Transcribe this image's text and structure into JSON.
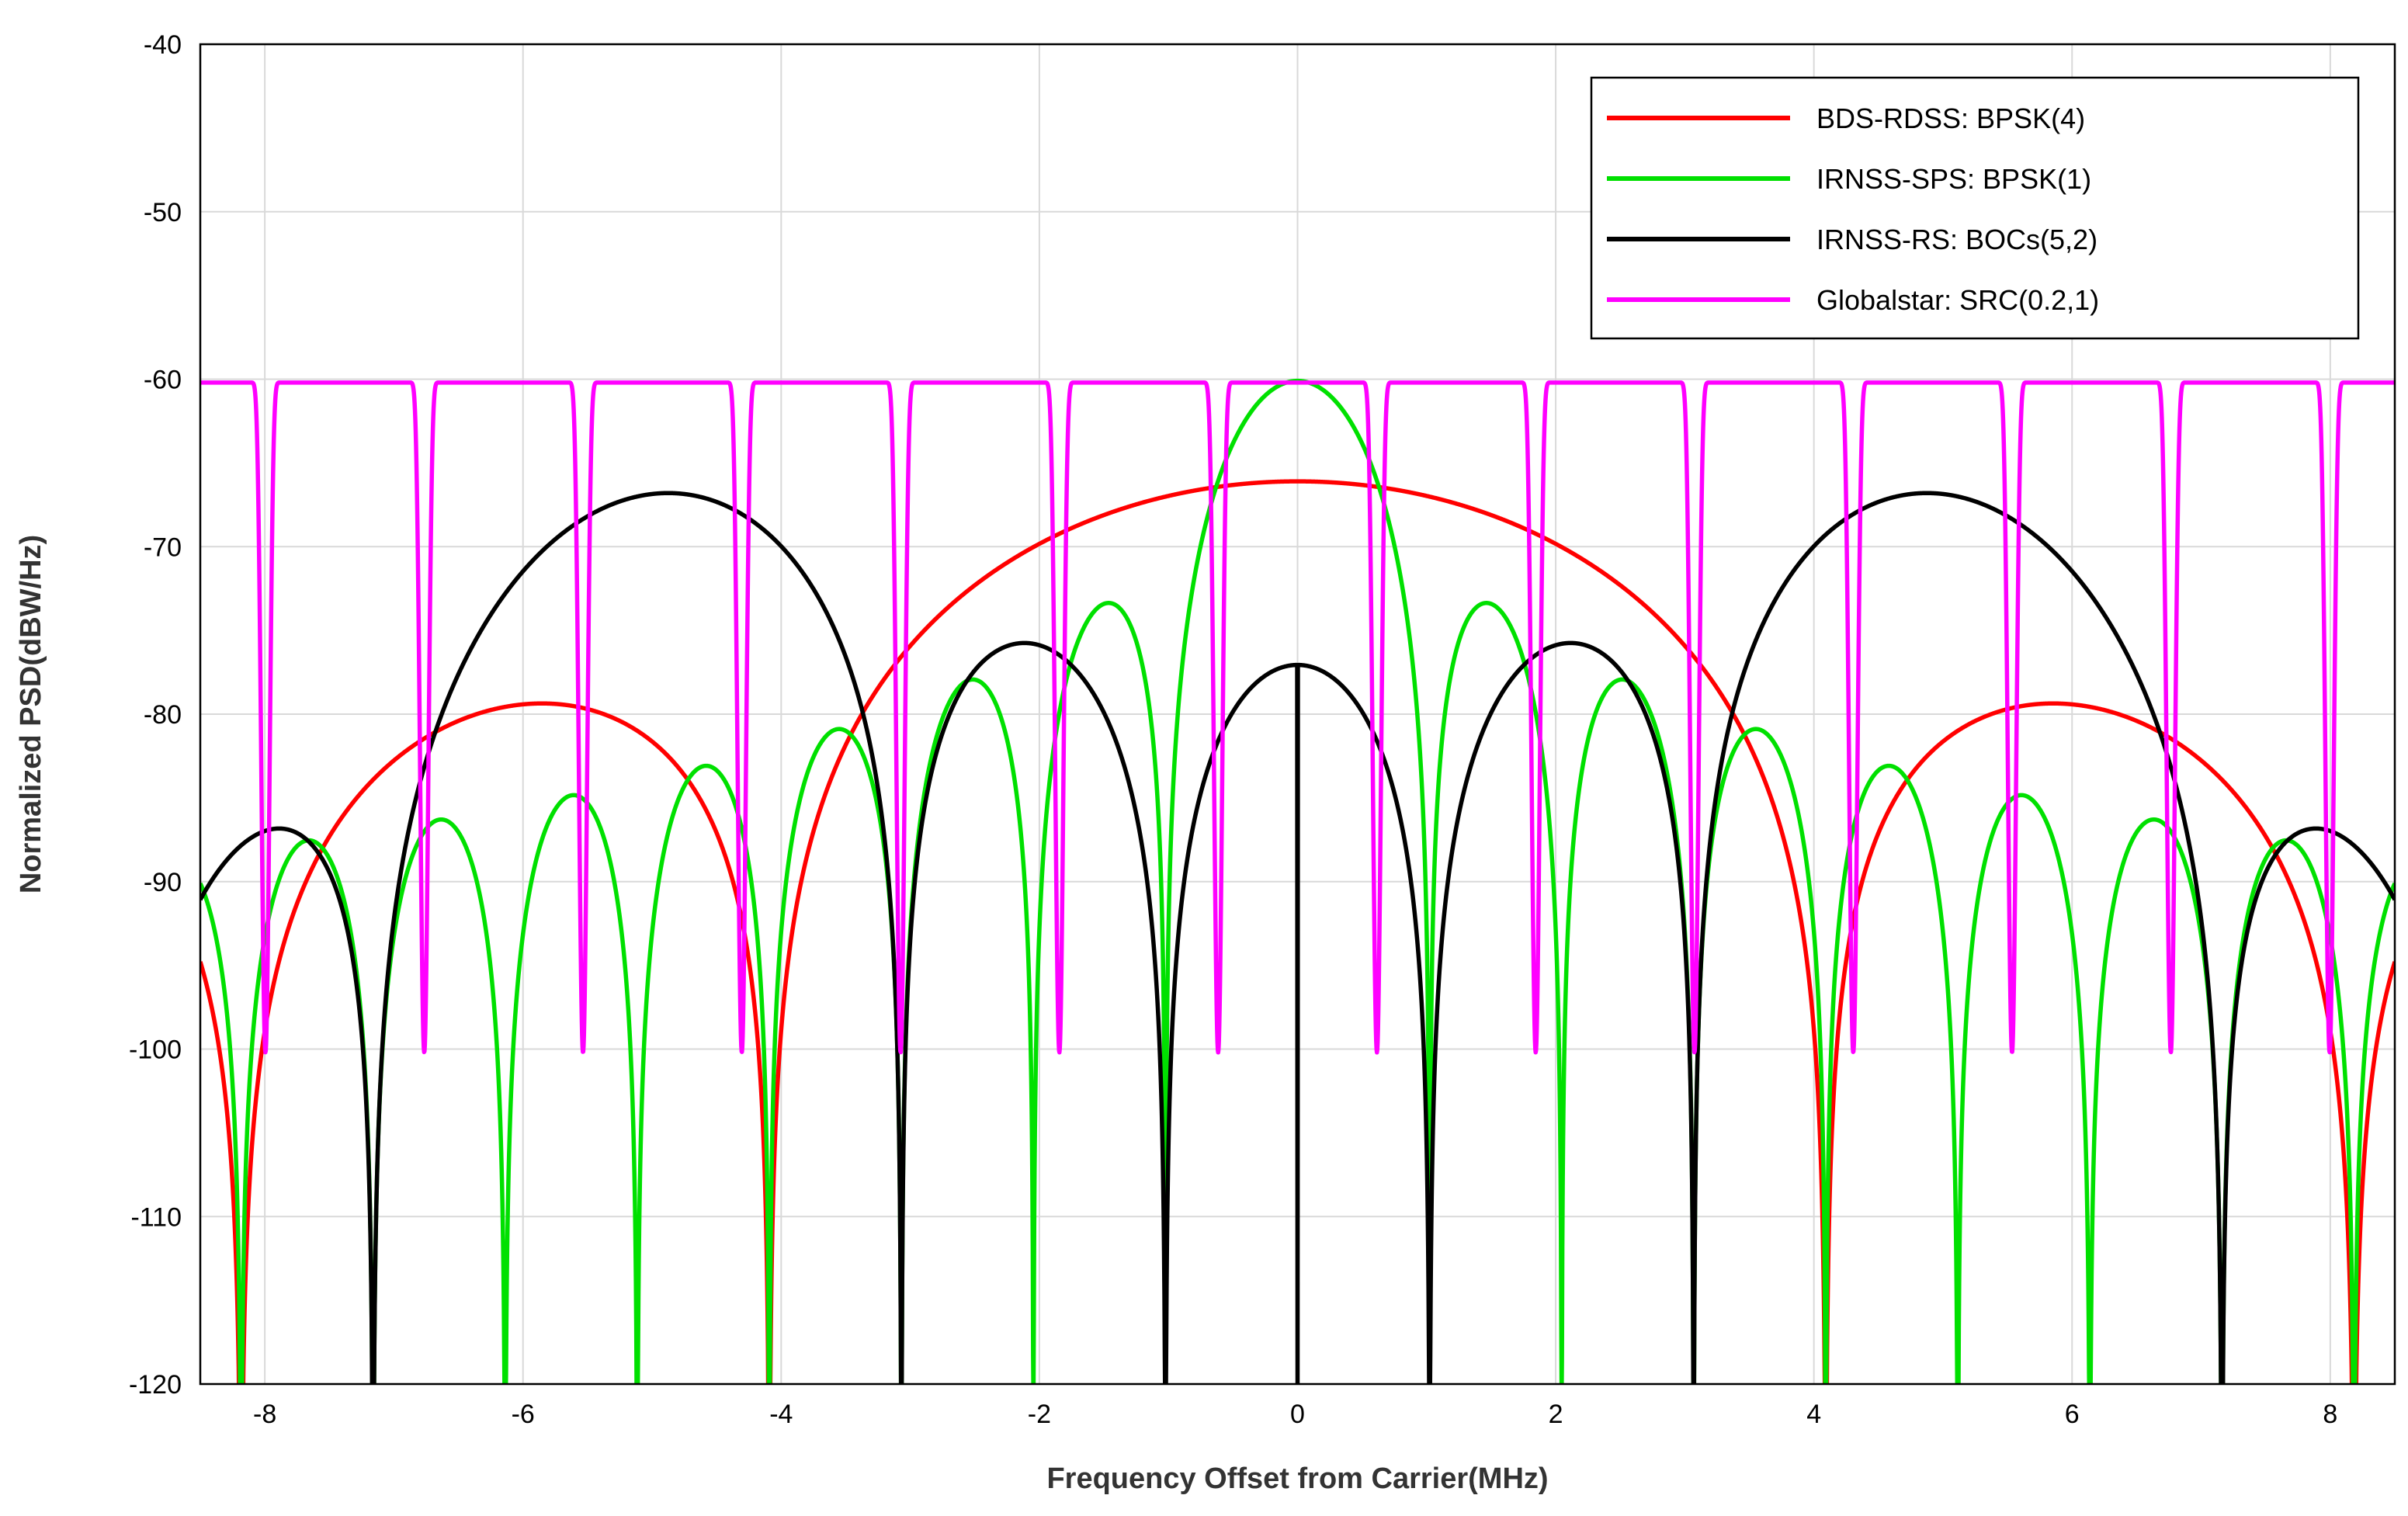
{
  "chart_data": {
    "type": "line",
    "title": "",
    "xlabel": "Frequency Offset from Carrier(MHz)",
    "ylabel": "Normalized PSD(dBW/Hz)",
    "xlim": [
      -8.5,
      8.5
    ],
    "ylim": [
      -120,
      -40
    ],
    "xticks": [
      -8,
      -6,
      -4,
      -2,
      0,
      2,
      4,
      6,
      8
    ],
    "yticks": [
      -40,
      -50,
      -60,
      -70,
      -80,
      -90,
      -100,
      -110,
      -120
    ],
    "grid": true,
    "legend_position": "top-right",
    "series": [
      {
        "name": "BDS-RDSS: BPSK(4)",
        "color": "#ff0000",
        "model": "bpsk",
        "chip_rate_mhz": 4.092,
        "peak_db": -66.1
      },
      {
        "name": "IRNSS-SPS: BPSK(1)",
        "color": "#00e000",
        "model": "bpsk",
        "chip_rate_mhz": 1.023,
        "peak_db": -60.1
      },
      {
        "name": "IRNSS-RS: BOCs(5,2)",
        "color": "#000000",
        "model": "bocs",
        "subcarrier_mhz": 5.115,
        "chip_rate_mhz": 2.046,
        "peak_db": -66.8
      },
      {
        "name": "Globalstar: SRC(0.2,1)",
        "color": "#ff00ff",
        "model": "src",
        "level_db": -60.2,
        "notch_spacing_mhz": 1.23,
        "notch_offset_mhz": 0.615
      }
    ]
  }
}
